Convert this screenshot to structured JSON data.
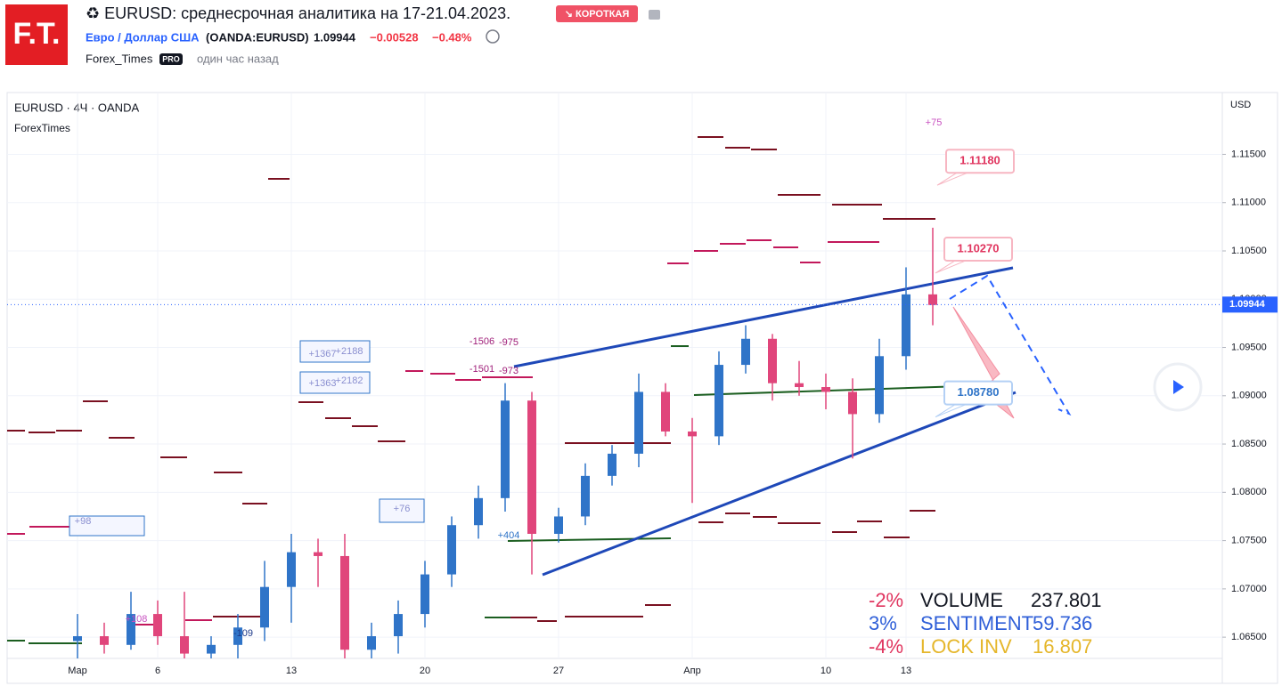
{
  "header": {
    "logo": "F.T.",
    "title": "♻ EURUSD: среднесрочная аналитика на 17-21.04.2023.",
    "badge": "↘ КОРОТКАЯ",
    "symbol_name": "Евро / Доллар США",
    "symbol_code": "(OANDA:EURUSD)",
    "price": "1.09944",
    "change": "−0.00528",
    "change_pct": "−0.48%",
    "author": "Forex_Times",
    "author_badge": "PRO",
    "time": "один час назад"
  },
  "chart_data": {
    "type": "candlestick",
    "title": "EURUSD · 4Ч · OANDA",
    "subtitle": "ForexTimes",
    "y_axis_label": "USD",
    "categories": [
      "Мар",
      null,
      null,
      "6",
      null,
      null,
      null,
      null,
      "13",
      null,
      null,
      null,
      null,
      "20",
      null,
      null,
      null,
      null,
      "27",
      null,
      null,
      null,
      null,
      "Апр",
      null,
      null,
      null,
      null,
      "10",
      null,
      null,
      "13",
      null
    ],
    "open": [
      1.0646,
      1.0651,
      1.0642,
      1.0674,
      1.0651,
      1.0633,
      1.0642,
      1.066,
      1.0702,
      1.0738,
      1.0734,
      1.0637,
      1.0651,
      1.0674,
      1.0715,
      1.0766,
      1.0794,
      1.0895,
      1.0757,
      1.0775,
      1.0817,
      1.084,
      1.0904,
      1.0863,
      1.0858,
      1.0932,
      1.0959,
      1.0913,
      1.0909,
      1.0904,
      1.0881,
      1.0941,
      1.1005
    ],
    "high": [
      1.0674,
      1.0665,
      1.0697,
      1.0688,
      1.0697,
      1.0651,
      1.0674,
      1.0729,
      1.0757,
      1.0752,
      1.0757,
      1.0665,
      1.0688,
      1.0729,
      1.0775,
      1.0807,
      1.0913,
      1.0904,
      1.0784,
      1.083,
      1.0849,
      1.0923,
      1.0913,
      1.0877,
      1.0946,
      1.0973,
      1.0964,
      1.0936,
      1.0923,
      1.0918,
      1.0959,
      1.1033,
      1.1074
    ],
    "low": [
      1.0628,
      1.0633,
      1.0637,
      1.0642,
      1.0628,
      1.0628,
      1.0628,
      1.0646,
      1.0665,
      1.0702,
      1.0628,
      1.0628,
      1.0633,
      1.066,
      1.0702,
      1.0752,
      1.078,
      1.0715,
      1.0748,
      1.0766,
      1.0807,
      1.0826,
      1.0858,
      1.0789,
      1.0849,
      1.0923,
      1.0895,
      1.09,
      1.0886,
      1.0835,
      1.0872,
      1.0927,
      1.0973
    ],
    "close": [
      1.0651,
      1.0642,
      1.0674,
      1.0651,
      1.0633,
      1.0642,
      1.066,
      1.0702,
      1.0738,
      1.0734,
      1.0637,
      1.0651,
      1.0674,
      1.0715,
      1.0766,
      1.0794,
      1.0895,
      1.0757,
      1.0775,
      1.0817,
      1.084,
      1.0904,
      1.0863,
      1.0858,
      1.0932,
      1.0959,
      1.0913,
      1.0909,
      1.0904,
      1.0881,
      1.0941,
      1.1005,
      1.0994
    ],
    "up_color": "#2f74c8",
    "down_color": "#e0457b",
    "ylim": [
      1.0628,
      1.1214
    ],
    "yticks": [
      {
        "value": 1.065,
        "label": "1.06500"
      },
      {
        "value": 1.07,
        "label": "1.07000"
      },
      {
        "value": 1.075,
        "label": "1.07500"
      },
      {
        "value": 1.08,
        "label": "1.08000"
      },
      {
        "value": 1.085,
        "label": "1.08500"
      },
      {
        "value": 1.09,
        "label": "1.09000"
      },
      {
        "value": 1.095,
        "label": "1.09500"
      },
      {
        "value": 1.1,
        "label": "1.10000"
      },
      {
        "value": 1.105,
        "label": "1.10500"
      },
      {
        "value": 1.11,
        "label": "1.11000"
      },
      {
        "value": 1.115,
        "label": "1.11500"
      }
    ],
    "last_price": 1.09944,
    "price_marks": [
      {
        "value": 1.1118,
        "label": "1.11180"
      },
      {
        "value": 1.1027,
        "label": "1.10270"
      },
      {
        "value": 1.0878,
        "label": "1.08780"
      }
    ],
    "notes": [
      "+75",
      "-1506",
      "-975",
      "-1501",
      "-973",
      "+1367",
      "+2188",
      "+1363",
      "+2182",
      "+76",
      "+98",
      "+108",
      "-109",
      "+404"
    ]
  },
  "stats": [
    {
      "change": "-2%",
      "name": "VOLUME",
      "value": "237.801"
    },
    {
      "change": "3%",
      "name": "SENTIMENT",
      "value": "59.736"
    },
    {
      "change": "-4%",
      "name": "LOCK INV",
      "value": "16.807"
    }
  ]
}
